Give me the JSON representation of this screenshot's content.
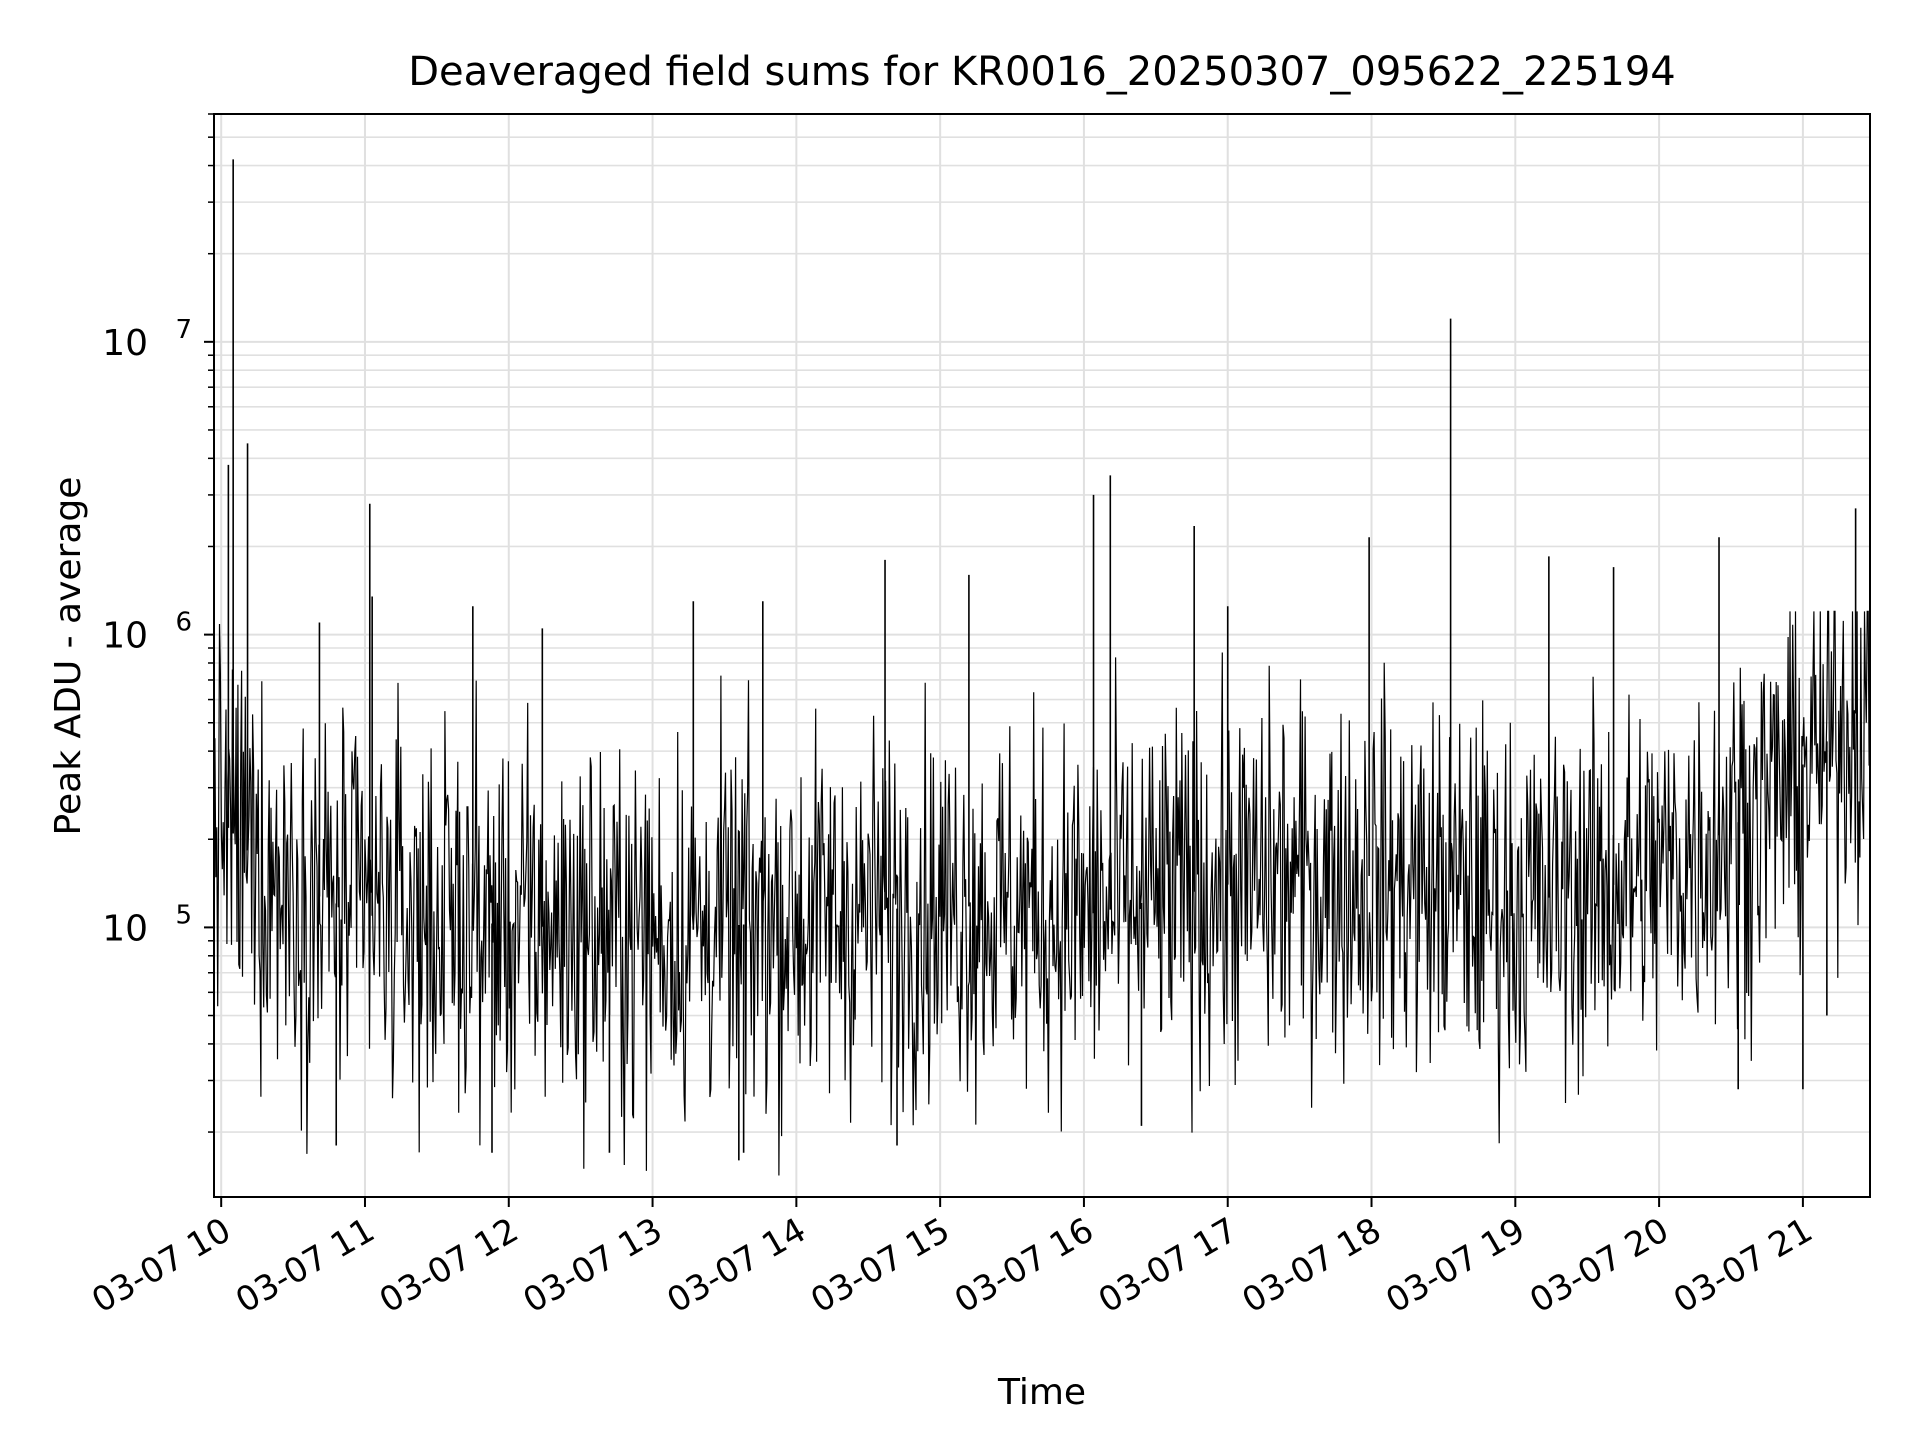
{
  "chart_data": {
    "type": "line",
    "title": "Deaveraged field sums for KR0016_20250307_095622_225194",
    "xlabel": "Time",
    "ylabel": "Peak ADU - average",
    "yscale": "log",
    "grid": true,
    "line_color": "#000000",
    "grid_color": "#e0e0e0",
    "x_tick_labels": [
      "03-07 10",
      "03-07 11",
      "03-07 12",
      "03-07 13",
      "03-07 14",
      "03-07 15",
      "03-07 16",
      "03-07 17",
      "03-07 18",
      "03-07 19",
      "03-07 20",
      "03-07 21"
    ],
    "y_tick_labels": [
      {
        "base": "10",
        "exp": "5"
      },
      {
        "base": "10",
        "exp": "6"
      },
      {
        "base": "10",
        "exp": "7"
      }
    ],
    "xlim": [
      "2025-03-07 09:57",
      "2025-03-07 21:28"
    ],
    "ylim": [
      12000,
      60000000
    ],
    "noise": {
      "baseline": [
        {
          "t": "2025-03-07 09:57",
          "v": 250000
        },
        {
          "t": "2025-03-07 10:20",
          "v": 150000
        },
        {
          "t": "2025-03-07 11:00",
          "v": 110000
        },
        {
          "t": "2025-03-07 13:00",
          "v": 95000
        },
        {
          "t": "2025-03-07 15:00",
          "v": 120000
        },
        {
          "t": "2025-03-07 16:00",
          "v": 110000
        },
        {
          "t": "2025-03-07 17:00",
          "v": 140000
        },
        {
          "t": "2025-03-07 18:00",
          "v": 150000
        },
        {
          "t": "2025-03-07 19:00",
          "v": 120000
        },
        {
          "t": "2025-03-07 20:00",
          "v": 150000
        },
        {
          "t": "2025-03-07 20:40",
          "v": 250000
        },
        {
          "t": "2025-03-07 21:28",
          "v": 600000
        }
      ],
      "spread_decades": 0.32,
      "samples": 1800
    },
    "spikes": [
      {
        "t": "2025-03-07 10:05",
        "v": 42000000
      },
      {
        "t": "2025-03-07 10:03",
        "v": 3800000
      },
      {
        "t": "2025-03-07 10:11",
        "v": 4500000
      },
      {
        "t": "2025-03-07 11:02",
        "v": 2800000
      },
      {
        "t": "2025-03-07 11:03",
        "v": 1350000
      },
      {
        "t": "2025-03-07 11:45",
        "v": 1250000
      },
      {
        "t": "2025-03-07 12:14",
        "v": 1050000
      },
      {
        "t": "2025-03-07 13:17",
        "v": 1300000
      },
      {
        "t": "2025-03-07 13:46",
        "v": 1300000
      },
      {
        "t": "2025-03-07 14:37",
        "v": 1800000
      },
      {
        "t": "2025-03-07 15:12",
        "v": 1600000
      },
      {
        "t": "2025-03-07 16:04",
        "v": 3000000
      },
      {
        "t": "2025-03-07 16:11",
        "v": 3500000
      },
      {
        "t": "2025-03-07 16:46",
        "v": 2350000
      },
      {
        "t": "2025-03-07 17:59",
        "v": 2150000
      },
      {
        "t": "2025-03-07 18:33",
        "v": 12000000
      },
      {
        "t": "2025-03-07 19:14",
        "v": 1850000
      },
      {
        "t": "2025-03-07 19:41",
        "v": 1700000
      },
      {
        "t": "2025-03-07 20:25",
        "v": 2150000
      },
      {
        "t": "2025-03-07 21:22",
        "v": 2700000
      },
      {
        "t": "2025-03-07 10:41",
        "v": 1100000
      },
      {
        "t": "2025-03-07 17:00",
        "v": 1250000
      }
    ],
    "dips": [
      {
        "t": "2025-03-07 10:48",
        "v": 18000
      },
      {
        "t": "2025-03-07 11:53",
        "v": 17000
      },
      {
        "t": "2025-03-07 12:42",
        "v": 17000
      },
      {
        "t": "2025-03-07 13:36",
        "v": 16000
      },
      {
        "t": "2025-03-07 13:38",
        "v": 17000
      },
      {
        "t": "2025-03-07 14:42",
        "v": 18000
      },
      {
        "t": "2025-03-07 16:24",
        "v": 21000
      },
      {
        "t": "2025-03-07 20:33",
        "v": 28000
      },
      {
        "t": "2025-03-07 21:00",
        "v": 28000
      },
      {
        "t": "2025-03-07 21:10",
        "v": 50000
      }
    ]
  }
}
